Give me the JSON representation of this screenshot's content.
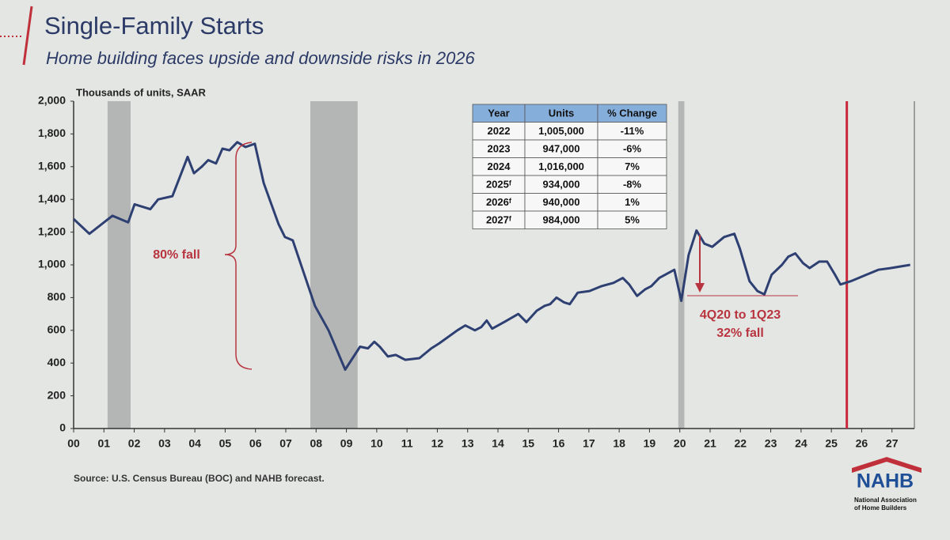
{
  "chart_data": {
    "type": "line",
    "title": "Single-Family Starts",
    "subtitle": "Home building faces upside and downside risks in 2026",
    "y_label": "Thousands of units, SAAR",
    "source": "Source:  U.S. Census Bureau (BOC) and NAHB forecast.",
    "logo": {
      "name": "NAHB",
      "line1": "National Association",
      "line2": "of Home Builders"
    },
    "color": "#2e3f72",
    "x": [
      2000.0,
      2000.52,
      2001.28,
      2001.8,
      2002.01,
      2002.53,
      2002.79,
      2003.26,
      2003.76,
      2003.97,
      2004.23,
      2004.44,
      2004.7,
      2004.91,
      2005.14,
      2005.4,
      2005.67,
      2005.98,
      2006.27,
      2006.76,
      2006.97,
      2007.23,
      2007.96,
      2008.41,
      2008.96,
      2009.45,
      2009.71,
      2009.92,
      2010.1,
      2010.37,
      2010.63,
      2010.94,
      2011.41,
      2011.8,
      2012.06,
      2012.66,
      2012.92,
      2013.24,
      2013.45,
      2013.63,
      2013.81,
      2014.2,
      2014.67,
      2014.94,
      2015.28,
      2015.54,
      2015.72,
      2015.93,
      2016.19,
      2016.37,
      2016.63,
      2017.02,
      2017.42,
      2017.81,
      2018.12,
      2018.33,
      2018.59,
      2018.85,
      2019.06,
      2019.32,
      2019.82,
      2020.05,
      2020.29,
      2020.55,
      2020.81,
      2021.07,
      2021.46,
      2021.8,
      2021.98,
      2022.3,
      2022.56,
      2022.79,
      2023.03,
      2023.37,
      2023.58,
      2023.81,
      2024.07,
      2024.28,
      2024.6,
      2024.86,
      2025.12,
      2025.3,
      2025.64,
      2026.16,
      2026.55,
      2026.95,
      2027.6
    ],
    "values": [
      1280,
      1190,
      1300,
      1260,
      1370,
      1340,
      1400,
      1420,
      1660,
      1560,
      1600,
      1640,
      1620,
      1710,
      1700,
      1750,
      1720,
      1740,
      1500,
      1250,
      1170,
      1150,
      750,
      600,
      360,
      500,
      490,
      530,
      500,
      440,
      450,
      420,
      430,
      490,
      520,
      600,
      630,
      600,
      620,
      660,
      610,
      650,
      700,
      650,
      720,
      750,
      760,
      800,
      770,
      760,
      830,
      840,
      870,
      890,
      920,
      880,
      810,
      850,
      870,
      920,
      970,
      780,
      1060,
      1210,
      1130,
      1110,
      1170,
      1190,
      1100,
      900,
      840,
      820,
      940,
      1000,
      1050,
      1070,
      1010,
      980,
      1020,
      1020,
      940,
      880,
      900,
      940,
      970,
      980,
      1000
    ],
    "xlim": [
      2000,
      2028
    ],
    "xticks": [
      {
        "value": 2000,
        "label": "00"
      },
      {
        "value": 2001,
        "label": "01"
      },
      {
        "value": 2002,
        "label": "02"
      },
      {
        "value": 2003,
        "label": "03"
      },
      {
        "value": 2004,
        "label": "04"
      },
      {
        "value": 2005,
        "label": "05"
      },
      {
        "value": 2006,
        "label": "06"
      },
      {
        "value": 2007,
        "label": "07"
      },
      {
        "value": 2008,
        "label": "08"
      },
      {
        "value": 2009,
        "label": "09"
      },
      {
        "value": 2010,
        "label": "10"
      },
      {
        "value": 2011,
        "label": "11"
      },
      {
        "value": 2012,
        "label": "12"
      },
      {
        "value": 2013,
        "label": "13"
      },
      {
        "value": 2014,
        "label": "14"
      },
      {
        "value": 2015,
        "label": "15"
      },
      {
        "value": 2016,
        "label": "16"
      },
      {
        "value": 2017,
        "label": "17"
      },
      {
        "value": 2018,
        "label": "18"
      },
      {
        "value": 2019,
        "label": "19"
      },
      {
        "value": 2020,
        "label": "20"
      },
      {
        "value": 2021,
        "label": "21"
      },
      {
        "value": 2022,
        "label": "22"
      },
      {
        "value": 2023,
        "label": "23"
      },
      {
        "value": 2024,
        "label": "24"
      },
      {
        "value": 2025,
        "label": "25"
      },
      {
        "value": 2026,
        "label": "26"
      },
      {
        "value": 2027,
        "label": "27"
      }
    ],
    "ylim": [
      0,
      2000
    ],
    "yticks": [
      0,
      200,
      400,
      600,
      800,
      {
        "value": 1000,
        "label": "1,000"
      },
      {
        "value": 1200,
        "label": "1,200"
      },
      {
        "value": 1400,
        "label": "1,400"
      },
      {
        "value": 1600,
        "label": "1,600"
      },
      {
        "value": 1800,
        "label": "1,800"
      },
      {
        "value": 2000,
        "label": "2,000"
      }
    ],
    "recessions": [
      [
        2001.12,
        2001.88
      ],
      [
        2007.81,
        2009.37
      ],
      [
        2019.95,
        2020.15
      ]
    ],
    "forecast_start": 2025.51,
    "annotations": [
      "80% fall",
      "4Q20 to 1Q23",
      "32% fall"
    ],
    "table": {
      "columns": [
        "Year",
        "Units",
        "% Change"
      ],
      "rows": [
        [
          "2022",
          "1,005,000",
          "-11%"
        ],
        [
          "2023",
          "947,000",
          "-6%"
        ],
        [
          "2024",
          "1,016,000",
          "7%"
        ],
        [
          "2025ᶠ",
          "934,000",
          "-8%"
        ],
        [
          "2026ᶠ",
          "940,000",
          "1%"
        ],
        [
          "2027ᶠ",
          "984,000",
          "5%"
        ]
      ]
    }
  }
}
